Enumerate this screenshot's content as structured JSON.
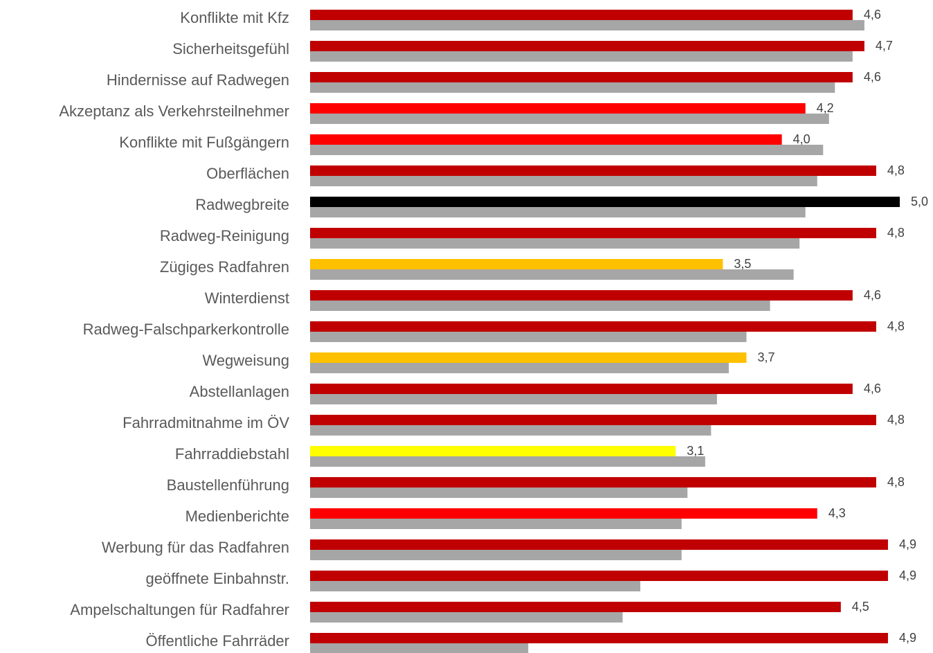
{
  "chart_data": {
    "type": "bar",
    "orientation": "horizontal",
    "categories": [
      "Konflikte mit Kfz",
      "Sicherheitsgefühl",
      "Hindernisse auf Radwegen",
      "Akzeptanz als Verkehrsteilnehmer",
      "Konflikte mit Fußgängern",
      "Oberflächen",
      "Radwegbreite",
      "Radweg-Reinigung",
      "Zügiges Radfahren",
      "Winterdienst",
      "Radweg-Falschparkerkontrolle",
      "Wegweisung",
      "Abstellanlagen",
      "Fahrradmitnahme im ÖV",
      "Fahrraddiebstahl",
      "Baustellenführung",
      "Medienberichte",
      "Werbung für das Radfahren",
      "geöffnete Einbahnstr.",
      "Ampelschaltungen für Radfahrer",
      "Öffentliche Fahrräder"
    ],
    "series": [
      {
        "values": [
          4.6,
          4.7,
          4.6,
          4.2,
          4.0,
          4.8,
          5.0,
          4.8,
          3.5,
          4.6,
          4.8,
          3.7,
          4.6,
          4.8,
          3.1,
          4.8,
          4.3,
          4.9,
          4.9,
          4.5,
          4.9
        ],
        "value_labels": [
          "4,6",
          "4,7",
          "4,6",
          "4,2",
          "4,0",
          "4,8",
          "5,0",
          "4,8",
          "3,5",
          "4,6",
          "4,8",
          "3,7",
          "4,6",
          "4,8",
          "3,1",
          "4,8",
          "4,3",
          "4,9",
          "4,9",
          "4,5",
          "4,9"
        ],
        "colors": [
          "#c00000",
          "#c00000",
          "#c00000",
          "#ff0000",
          "#ff0000",
          "#c00000",
          "#000000",
          "#c00000",
          "#ffc000",
          "#c00000",
          "#c00000",
          "#ffc000",
          "#c00000",
          "#c00000",
          "#ffff00",
          "#c00000",
          "#ff0000",
          "#c00000",
          "#c00000",
          "#c00000",
          "#c00000"
        ]
      },
      {
        "values": [
          4.7,
          4.6,
          4.45,
          4.4,
          4.35,
          4.3,
          4.2,
          4.15,
          4.1,
          3.9,
          3.7,
          3.55,
          3.45,
          3.4,
          3.35,
          3.2,
          3.15,
          3.15,
          2.8,
          2.65,
          1.85
        ],
        "color": "#a6a6a6"
      }
    ],
    "xlim": [
      0,
      5
    ]
  }
}
